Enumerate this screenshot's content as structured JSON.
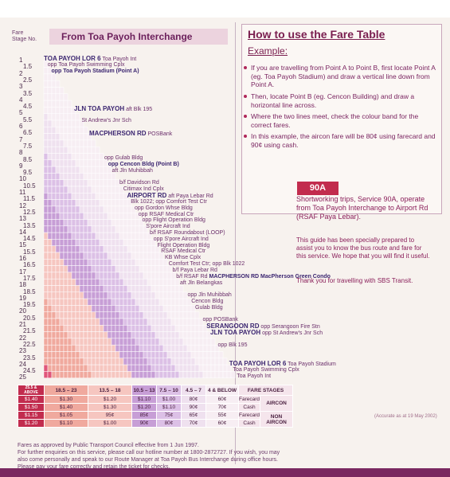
{
  "header": {
    "stage_label_1": "Fare",
    "stage_label_2": "Stage No.",
    "title": "From Toa Payoh Interchange"
  },
  "stage_numbers": [
    "1",
    "1.5",
    "2",
    "2.5",
    "3",
    "3.5",
    "4",
    "4.5",
    "5",
    "5.5",
    "6",
    "6.5",
    "7",
    "7.5",
    "8",
    "8.5",
    "9",
    "9.5",
    "10",
    "10.5",
    "11",
    "11.5",
    "12",
    "12.5",
    "13",
    "13.5",
    "14",
    "14.5",
    "15",
    "15.5",
    "16",
    "16.5",
    "17",
    "17.5",
    "18",
    "18.5",
    "19",
    "19.5",
    "20",
    "20.5",
    "21",
    "21.5",
    "22",
    "22.5",
    "23",
    "23.5",
    "24",
    "24.5",
    "25"
  ],
  "stops": [
    {
      "text": "TOA PAYOH LOR 6",
      "extra": "Toa Payoh Int",
      "row": 0,
      "bold": true
    },
    {
      "text": "opp Toa Payoh Swimming Cplx",
      "row": 1,
      "bold": false
    },
    {
      "text": "opp Toa Payoh Stadium (Point A)",
      "row": 2,
      "bold": false,
      "strong": true
    },
    {
      "text": "JLN TOA PAYOH",
      "extra": "aft Blk 195",
      "row": 8,
      "bold": true
    },
    {
      "text": "St Andrew's Jnr Sch",
      "row": 10,
      "bold": false
    },
    {
      "text": "MACPHERSON RD",
      "extra": "POSBank",
      "row": 12,
      "bold": true
    },
    {
      "text": "opp Gulab Bldg",
      "row": 16,
      "bold": false
    },
    {
      "text": "opp Cencon Bldg (Point B)",
      "row": 17,
      "bold": false,
      "strong": true
    },
    {
      "text": "aft Jln Muhibbah",
      "row": 18,
      "bold": false
    },
    {
      "text": "b/f Davidson Rd",
      "row": 20,
      "bold": false
    },
    {
      "text": "Citimax Ind Cplx",
      "row": 21,
      "bold": false
    },
    {
      "text": "AIRPORT RD",
      "extra": "aft Paya Lebar Rd",
      "row": 22,
      "bold": true
    },
    {
      "text": "Blk 1022; opp Comfort Test Ctr",
      "row": 23,
      "bold": false
    },
    {
      "text": "opp Gordon Whse Bldg",
      "row": 24,
      "bold": false
    },
    {
      "text": "opp RSAF Medical Ctr",
      "row": 25,
      "bold": false
    },
    {
      "text": "opp Flight Operation Bldg",
      "row": 26,
      "bold": false
    },
    {
      "text": "S'pore Aircraft Ind",
      "row": 27,
      "bold": false
    },
    {
      "text": "b/f RSAF Roundabout (LOOP)",
      "row": 28,
      "bold": false
    },
    {
      "text": "opp S'pore Aircraft Ind",
      "row": 29,
      "bold": false
    },
    {
      "text": "Flight Operation Bldg",
      "row": 30,
      "bold": false
    },
    {
      "text": "RSAF Medical Ctr",
      "row": 31,
      "bold": false
    },
    {
      "text": "KB Whse Cplx",
      "row": 32,
      "bold": false
    },
    {
      "text": "Comfort Test Ctr; opp Blk 1022",
      "row": 33,
      "bold": false
    },
    {
      "text": "b/f Paya Lebar Rd",
      "row": 34,
      "bold": false
    },
    {
      "text": "b/f RSAF Rd",
      "extra2": "MACPHERSON RD MacPherson Green Condo",
      "row": 35,
      "bold": false
    },
    {
      "text": "aft Jln Belangkas",
      "row": 36,
      "bold": false
    },
    {
      "text": "opp Jln Muhibbah",
      "row": 38,
      "bold": false
    },
    {
      "text": "Cencon Bldg",
      "row": 39,
      "bold": false
    },
    {
      "text": "Gulab Bldg",
      "row": 40,
      "bold": false
    },
    {
      "text": "opp POSBank",
      "row": 42,
      "bold": false
    },
    {
      "text": "SERANGOON RD",
      "extra": "opp Serangoon Fire Stn",
      "row": 43,
      "bold": true
    },
    {
      "text": "JLN TOA PAYOH",
      "extra": "opp St Andrew's Jnr Sch",
      "row": 44,
      "bold": true
    },
    {
      "text": "opp Blk 195",
      "row": 46,
      "bold": false
    },
    {
      "text": "TOA PAYOH LOR 6",
      "extra": "Toa Payoh Stadium",
      "row": 49,
      "bold": true
    },
    {
      "text": "Toa Payoh Swimming Cplx",
      "row": 50,
      "bold": false
    },
    {
      "text": "Toa Payoh Int",
      "row": 51,
      "bold": false
    }
  ],
  "fare_table": {
    "header": [
      "25.5 & ABOVE",
      "18.5 – 23",
      "13.5 – 18",
      "10.5 – 13",
      "7.5 – 10",
      "4.5 – 7",
      "4 & BELOW",
      "FARE STAGES"
    ],
    "rows": [
      {
        "cells": [
          "$1.40",
          "$1.30",
          "$1.20",
          "$1.10",
          "$1.00",
          "80¢",
          "60¢",
          "Farecard"
        ],
        "group": "AIRCON"
      },
      {
        "cells": [
          "$1.50",
          "$1.40",
          "$1.30",
          "$1.20",
          "$1.10",
          "90¢",
          "70¢",
          "Cash"
        ],
        "group": ""
      },
      {
        "cells": [
          "$1.15",
          "$1.05",
          "95¢",
          "85¢",
          "75¢",
          "65¢",
          "55¢",
          "Farecard"
        ],
        "group": "NON AIRCON"
      },
      {
        "cells": [
          "$1.20",
          "$1.10",
          "$1.00",
          "90¢",
          "80¢",
          "70¢",
          "60¢",
          "Cash"
        ],
        "group": ""
      }
    ],
    "band_colors": [
      "#e0567a",
      "#f0a99e",
      "#f6c6c0",
      "#c79ed6",
      "#dcc0e6",
      "#efe1ef",
      "#f7eef3"
    ]
  },
  "footer": {
    "line1": "Fares as approved by Public Transport Council effective from 1 Jun 1997.",
    "line2": "For further enquiries on this service, please call our hotline number at 1800-2872727. If you wish, you may",
    "line3": "also come personally and speak to our Route Manager at Toa Payoh Bus Interchange during office hours.",
    "line4": "Please pay your fare correctly and retain the ticket for checks.",
    "accuracy": "(Accurate as at 19 May 2002)"
  },
  "howto": {
    "title": "How to use the Fare Table",
    "example": "Example:",
    "b1": "If you are travelling from Point A to Point B, first locate Point A (eg. Toa Payoh Stadium) and draw a vertical line down from Point A.",
    "b2": "Then, locate Point B (eg. Cencon Building) and draw a horizontal line across.",
    "b3": "Where the two lines meet, check the colour band for the correct fares.",
    "b4": "In this example, the aircon fare will be 80¢ using farecard and 90¢ using cash."
  },
  "service": {
    "number": "90A",
    "desc": "Shortworking trips, Service 90A, operate from Toa Payoh Interchange to Airport Rd (RSAF Paya Lebar).",
    "guide": "This guide has been specially prepared to assist you to know the bus route and fare for this service. We hope that you will find it useful.",
    "thanks": "Thank you for travelling with SBS Transit."
  }
}
